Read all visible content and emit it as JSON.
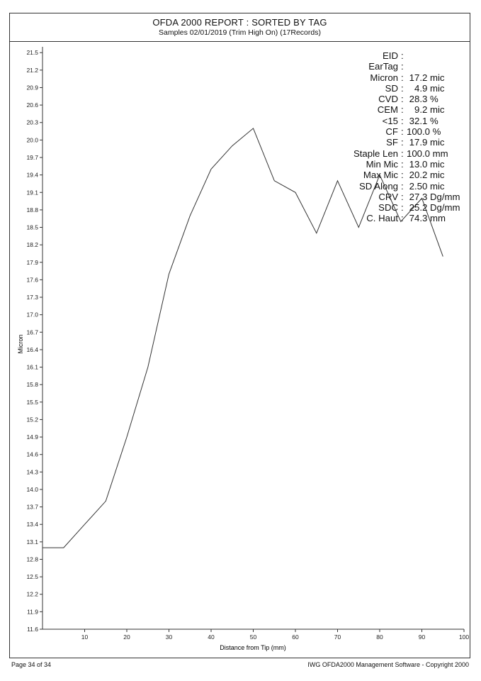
{
  "report": {
    "title": "OFDA 2000 REPORT : SORTED BY TAG",
    "subtitle": "Samples 02/01/2019 (Trim High On) (17Records)",
    "footer_left": "Page 34 of 34",
    "footer_right": "IWG OFDA2000 Management Software - Copyright 2000"
  },
  "stats": [
    {
      "label": "EID",
      "value": ""
    },
    {
      "label": "EarTag",
      "value": ""
    },
    {
      "label": "Micron",
      "value": " 17.2 mic"
    },
    {
      "label": "SD",
      "value": "   4.9 mic"
    },
    {
      "label": "CVD",
      "value": " 28.3 %"
    },
    {
      "label": "CEM",
      "value": "   9.2 mic"
    },
    {
      "label": "<15",
      "value": " 32.1 %"
    },
    {
      "label": "CF",
      "value": "100.0 %"
    },
    {
      "label": "SF",
      "value": " 17.9 mic"
    },
    {
      "label": "Staple Len",
      "value": "100.0 mm"
    },
    {
      "label": "Min Mic",
      "value": " 13.0 mic"
    },
    {
      "label": "Max Mic",
      "value": " 20.2 mic"
    },
    {
      "label": "SD Along",
      "value": " 2.50 mic"
    },
    {
      "label": "CRV",
      "value": " 27.3 Dg/mm"
    },
    {
      "label": "SDC",
      "value": " 25.2 Dg/mm"
    },
    {
      "label": "C. Haut",
      "value": " 74.3 mm"
    }
  ],
  "chart_data": {
    "type": "line",
    "xlabel": "Distance from Tip (mm)",
    "ylabel": "Micron",
    "xlim": [
      0,
      100
    ],
    "ylim": [
      11.6,
      21.6
    ],
    "xticks": [
      10,
      20,
      30,
      40,
      50,
      60,
      70,
      80,
      90,
      100
    ],
    "yticks": [
      11.6,
      11.9,
      12.2,
      12.5,
      12.8,
      13.1,
      13.4,
      13.7,
      14.0,
      14.3,
      14.6,
      14.9,
      15.2,
      15.5,
      15.8,
      16.1,
      16.4,
      16.7,
      17.0,
      17.3,
      17.6,
      17.9,
      18.2,
      18.5,
      18.8,
      19.1,
      19.4,
      19.7,
      20.0,
      20.3,
      20.6,
      20.9,
      21.2,
      21.5
    ],
    "series": [
      {
        "x": [
          0,
          5,
          10,
          15,
          20,
          25,
          30,
          35,
          40,
          45,
          50,
          55,
          60,
          65,
          70,
          75,
          80,
          85,
          90,
          95
        ],
        "y": [
          13.0,
          13.0,
          13.4,
          13.8,
          14.9,
          16.1,
          17.7,
          18.7,
          19.5,
          19.9,
          20.2,
          19.3,
          19.1,
          18.4,
          19.3,
          18.5,
          19.4,
          18.6,
          19.0,
          18.0
        ]
      }
    ],
    "color": "#333333",
    "grid": false
  }
}
